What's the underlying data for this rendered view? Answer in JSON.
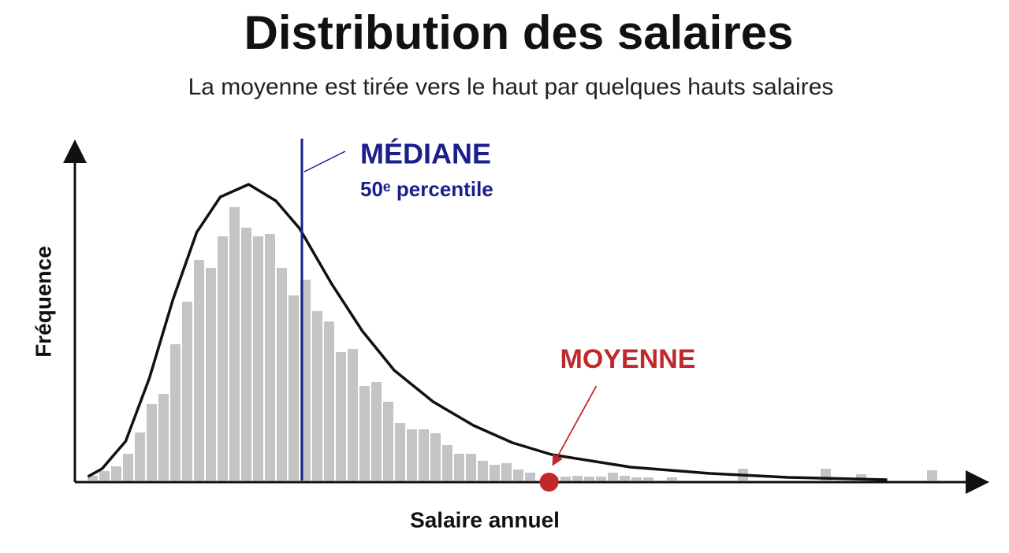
{
  "chart_data": {
    "type": "histogram",
    "title": "Distribution des salaires",
    "subtitle": "La moyenne est tirée vers le haut par quelques hauts salaires",
    "x_label": "Salaire annuel",
    "y_label": "Fréquence",
    "bins": [
      1,
      2,
      3,
      4,
      5,
      6,
      7,
      8,
      9,
      10,
      11,
      12,
      13,
      14,
      15,
      16,
      17,
      18,
      19,
      20,
      21,
      22,
      23,
      24,
      25,
      26,
      27,
      28,
      29,
      30,
      31,
      32,
      33,
      34,
      35,
      36,
      37,
      38,
      39,
      40,
      41,
      42,
      43,
      44,
      45,
      46,
      47,
      48,
      49,
      50,
      51,
      52,
      53,
      54,
      55,
      56,
      57,
      58,
      59,
      60,
      61,
      62,
      63,
      64,
      65,
      66,
      67,
      68,
      69,
      70,
      71,
      72,
      73
    ],
    "values": [
      6,
      12,
      18,
      34,
      61,
      97,
      110,
      173,
      227,
      280,
      270,
      310,
      347,
      321,
      310,
      313,
      270,
      235,
      255,
      215,
      202,
      163,
      167,
      120,
      125,
      100,
      73,
      65,
      65,
      60,
      45,
      34,
      34,
      25,
      20,
      22,
      14,
      10,
      0,
      5,
      5,
      6,
      5,
      5,
      10,
      6,
      4,
      4,
      0,
      4,
      0,
      0,
      0,
      0,
      0,
      15,
      0,
      0,
      0,
      0,
      0,
      0,
      15,
      0,
      0,
      8,
      0,
      0,
      0,
      0,
      0,
      13
    ],
    "color": "#c4c4c4",
    "curve": {
      "color": "#111111",
      "x": [
        1.1,
        2.3,
        4.3,
        6.3,
        8.3,
        10.3,
        12.3,
        14.7,
        17,
        19,
        21.7,
        24.3,
        27,
        30.3,
        33.7,
        37,
        40.3,
        47,
        53.7,
        60.3,
        68.7
      ],
      "y": [
        5,
        15,
        50,
        130,
        230,
        315,
        360,
        376,
        355,
        320,
        250,
        190,
        140,
        100,
        70,
        48,
        33,
        17,
        9,
        4,
        1
      ]
    },
    "median": {
      "x": 19.2,
      "label": "MÉDIANE",
      "sublabel": "50ᵉ percentile",
      "color": "#1a1f8c"
    },
    "mean": {
      "x": 40.1,
      "label": "MOYENNE",
      "color": "#c0282a"
    },
    "xlim": [
      0,
      76
    ],
    "ylim": [
      0,
      430
    ]
  }
}
